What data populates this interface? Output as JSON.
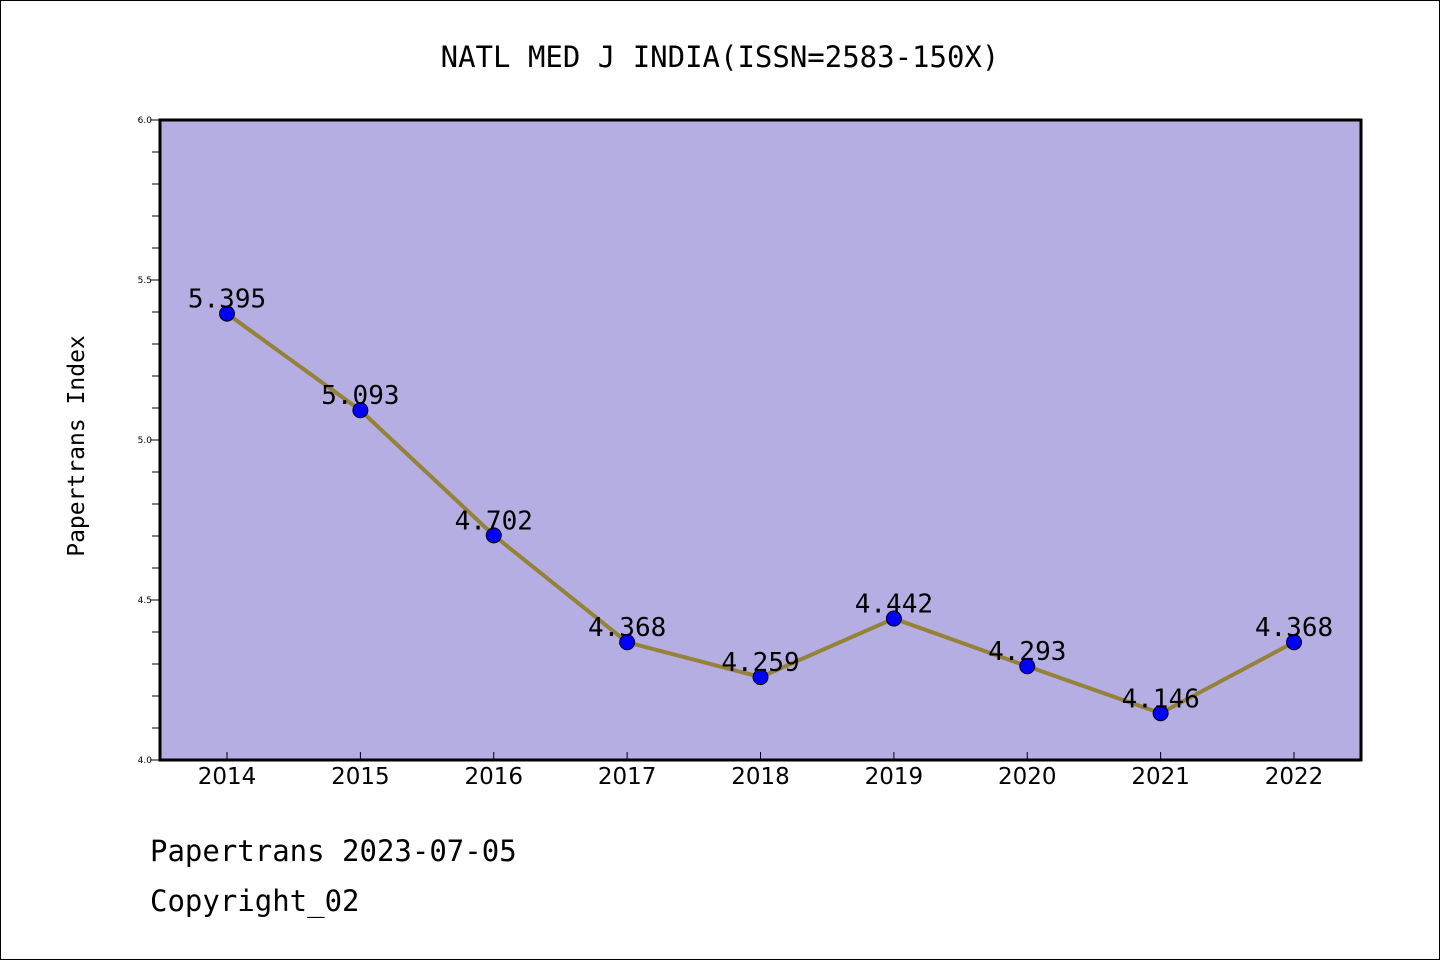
{
  "chart_data": {
    "type": "line",
    "title": "NATL MED J INDIA(ISSN=2583-150X)",
    "ylabel": "Papertrans Index",
    "xlabel": "",
    "categories": [
      "2014",
      "2015",
      "2016",
      "2017",
      "2018",
      "2019",
      "2020",
      "2021",
      "2022"
    ],
    "series": [
      {
        "values": [
          5.395,
          5.093,
          4.702,
          4.368,
          4.259,
          4.442,
          4.293,
          4.146,
          4.368
        ],
        "data_labels": [
          "5.395",
          "5.093",
          "4.702",
          "4.368",
          "4.259",
          "4.442",
          "4.293",
          "4.146",
          "4.368"
        ]
      }
    ],
    "ylim": [
      4.0,
      6.0
    ],
    "yticks": [
      "4.0",
      "4.5",
      "5.0",
      "5.5",
      "6.0"
    ],
    "grid": false,
    "colors": {
      "plot_background": "#b4aee2",
      "line": "#958238",
      "marker": "#0000ff"
    }
  },
  "footer": {
    "line1": "Papertrans 2023-07-05",
    "line2": "Copyright_02"
  }
}
